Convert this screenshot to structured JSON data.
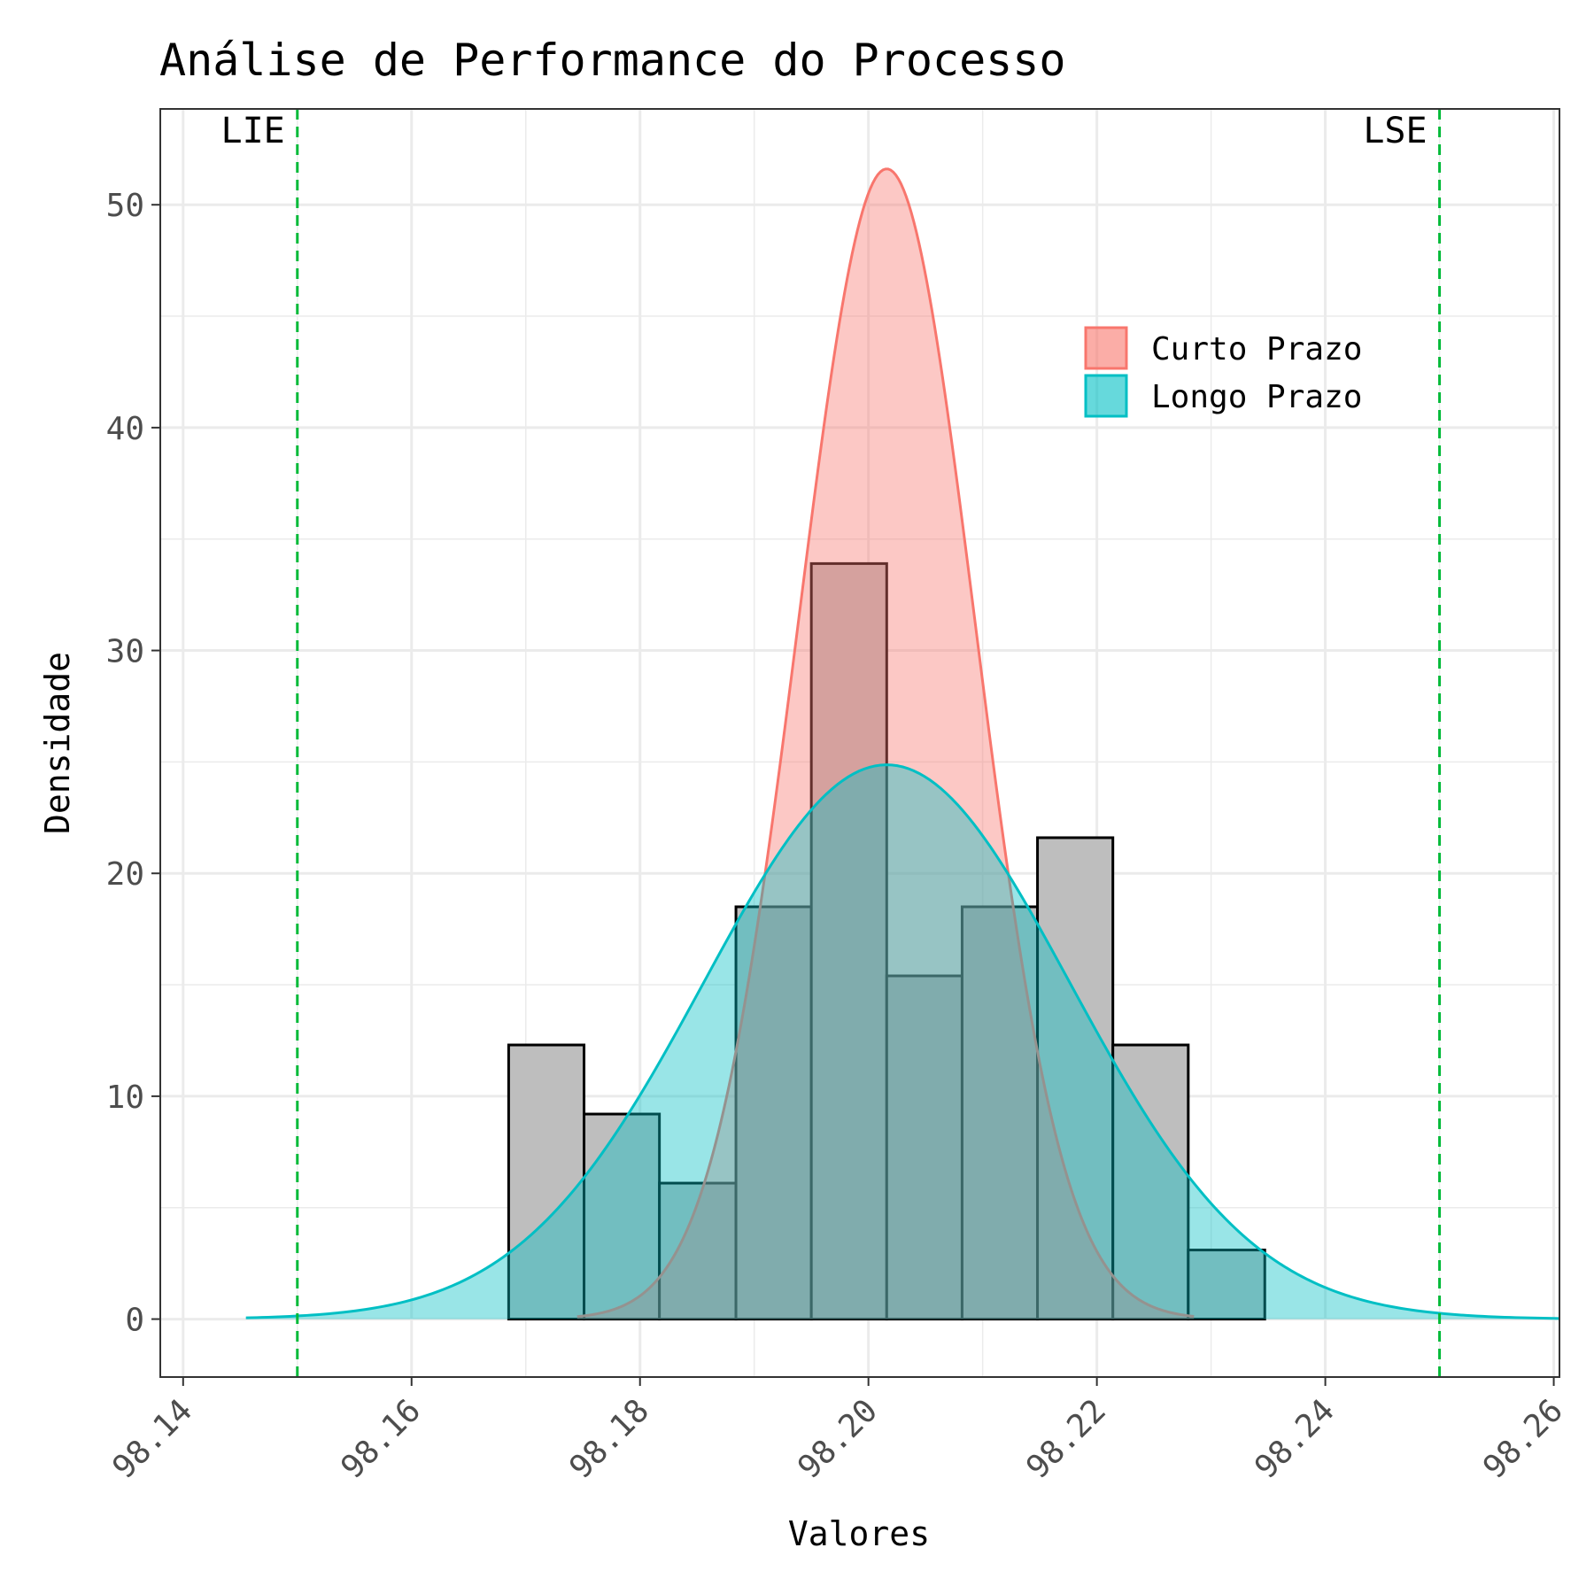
{
  "chart_data": {
    "type": "histogram",
    "title": "Análise de Performance do Processo",
    "xlabel": "Valores",
    "ylabel": "Densidade",
    "xlim": [
      98.138,
      98.2605
    ],
    "ylim": [
      -2.6,
      54.3
    ],
    "x_ticks": [
      98.14,
      98.16,
      98.18,
      98.2,
      98.22,
      98.24,
      98.26
    ],
    "x_tick_labels": [
      "98.14",
      "98.16",
      "98.18",
      "98.20",
      "98.22",
      "98.24",
      "98.26"
    ],
    "y_ticks": [
      0,
      10,
      20,
      30,
      40,
      50
    ],
    "y_tick_labels": [
      "0",
      "10",
      "20",
      "30",
      "40",
      "50"
    ],
    "grid": true,
    "histogram": {
      "fill": "#bebebe",
      "edge": "#000000",
      "bins": [
        {
          "x0": 98.1685,
          "x1": 98.1751,
          "density": 12.3
        },
        {
          "x0": 98.1751,
          "x1": 98.1817,
          "density": 9.2
        },
        {
          "x0": 98.1817,
          "x1": 98.1884,
          "density": 6.1
        },
        {
          "x0": 98.1884,
          "x1": 98.195,
          "density": 18.5
        },
        {
          "x0": 98.195,
          "x1": 98.2016,
          "density": 33.9
        },
        {
          "x0": 98.2016,
          "x1": 98.2082,
          "density": 15.4
        },
        {
          "x0": 98.2082,
          "x1": 98.2148,
          "density": 18.5
        },
        {
          "x0": 98.2148,
          "x1": 98.2214,
          "density": 21.6
        },
        {
          "x0": 98.2214,
          "x1": 98.228,
          "density": 12.3
        },
        {
          "x0": 98.228,
          "x1": 98.2347,
          "density": 3.1
        }
      ]
    },
    "series": [
      {
        "name": "Curto Prazo",
        "type": "normal-density",
        "mean": 98.2016,
        "sd": 0.00773,
        "x_range": [
          98.1745,
          98.2285
        ],
        "color": "#f8766d",
        "fill_opacity": 0.4
      },
      {
        "name": "Longo Prazo",
        "type": "normal-density",
        "mean": 98.2016,
        "sd": 0.01604,
        "x_range": [
          98.1455,
          98.2605
        ],
        "color": "#00bfc4",
        "fill_opacity": 0.4
      }
    ],
    "reference_lines": [
      {
        "label": "LIE",
        "x": 98.15,
        "color": "#00ba38",
        "style": "dashed"
      },
      {
        "label": "LSE",
        "x": 98.25,
        "color": "#00ba38",
        "style": "dashed"
      }
    ],
    "legend": {
      "position": "top-right"
    }
  }
}
